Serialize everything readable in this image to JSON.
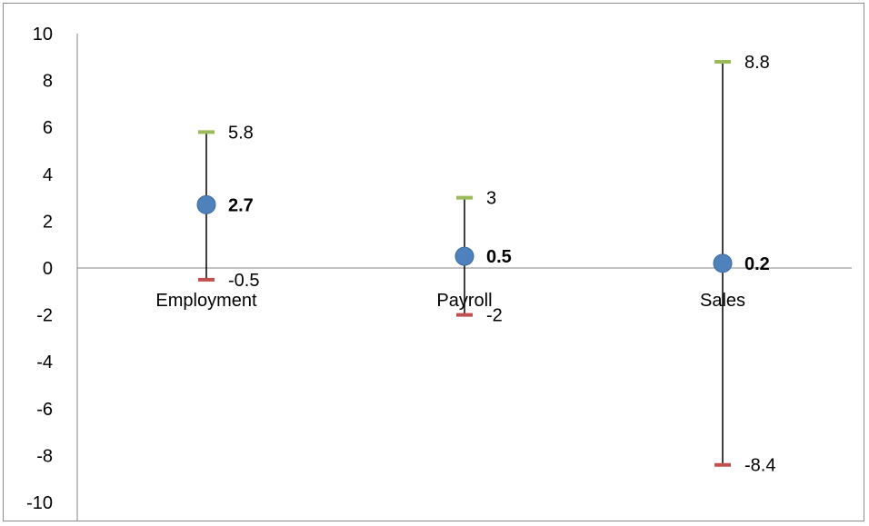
{
  "chart_data": {
    "type": "scatter",
    "title": "",
    "xlabel": "",
    "ylabel": "",
    "categories": [
      "Employment",
      "Payroll",
      "Sales"
    ],
    "y_ticks": [
      "10",
      "8",
      "6",
      "4",
      "2",
      "0",
      "-2",
      "-4",
      "-6",
      "-8",
      "-10"
    ],
    "ylim": [
      -10,
      10
    ],
    "grid": false,
    "legend": "none",
    "series": [
      {
        "values": [
          2.7,
          0.5,
          0.2
        ],
        "labels": [
          "2.7",
          "0.5",
          "0.2"
        ]
      },
      {
        "values": [
          5.8,
          3,
          8.8
        ],
        "labels": [
          "5.8",
          "3",
          "8.8"
        ]
      },
      {
        "values": [
          -0.5,
          -2,
          -8.4
        ],
        "labels": [
          "-0.5",
          "-2",
          "-8.4"
        ]
      }
    ],
    "colors": {
      "point": "#4f81bd",
      "upper_marker": "#9bbb59",
      "lower_marker": "#c0504d",
      "range_line": "#000000",
      "axis": "#868686"
    }
  }
}
